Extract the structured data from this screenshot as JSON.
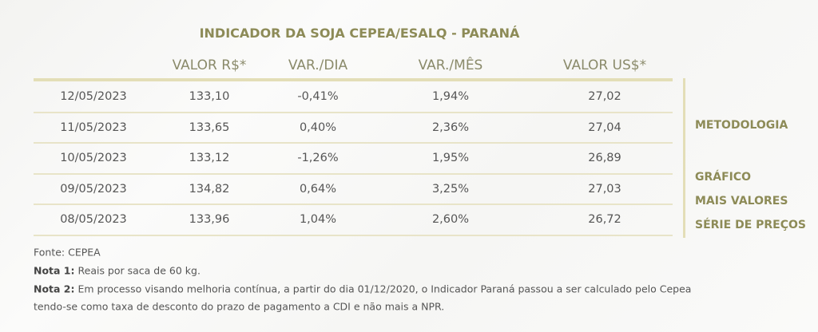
{
  "title": "INDICADOR DA SOJA CEPEA/ESALQ - PARANÁ",
  "table": {
    "headers": [
      "VALOR R$*",
      "VAR./DIA",
      "VAR./MÊS",
      "VALOR US$*"
    ],
    "rows": [
      [
        "12/05/2023",
        "133,10",
        "-0,41%",
        "1,94%",
        "27,02"
      ],
      [
        "11/05/2023",
        "133,65",
        "0,40%",
        "2,36%",
        "27,04"
      ],
      [
        "10/05/2023",
        "133,12",
        "-1,26%",
        "1,95%",
        "26,89"
      ],
      [
        "09/05/2023",
        "134,82",
        "0,64%",
        "3,25%",
        "27,03"
      ],
      [
        "08/05/2023",
        "133,96",
        "1,04%",
        "2,60%",
        "26,72"
      ]
    ]
  },
  "links": [
    "METODOLOGIA",
    "GRÁFICO",
    "MAIS VALORES",
    "SÉRIE DE PREÇOS"
  ],
  "source": "Fonte: CEPEA",
  "notes": [
    {
      "label": "Nota 1:",
      "text": "Reais por saca de 60 kg."
    },
    {
      "label": "Nota 2:",
      "text": "Em processo visando melhoria contínua, a partir do dia 01/12/2020, o Indicador Paraná passou a ser calculado pelo Cepea"
    }
  ],
  "note_continuation": "tendo-se como taxa de desconto do prazo de pagamento a CDI e não mais a NPR."
}
